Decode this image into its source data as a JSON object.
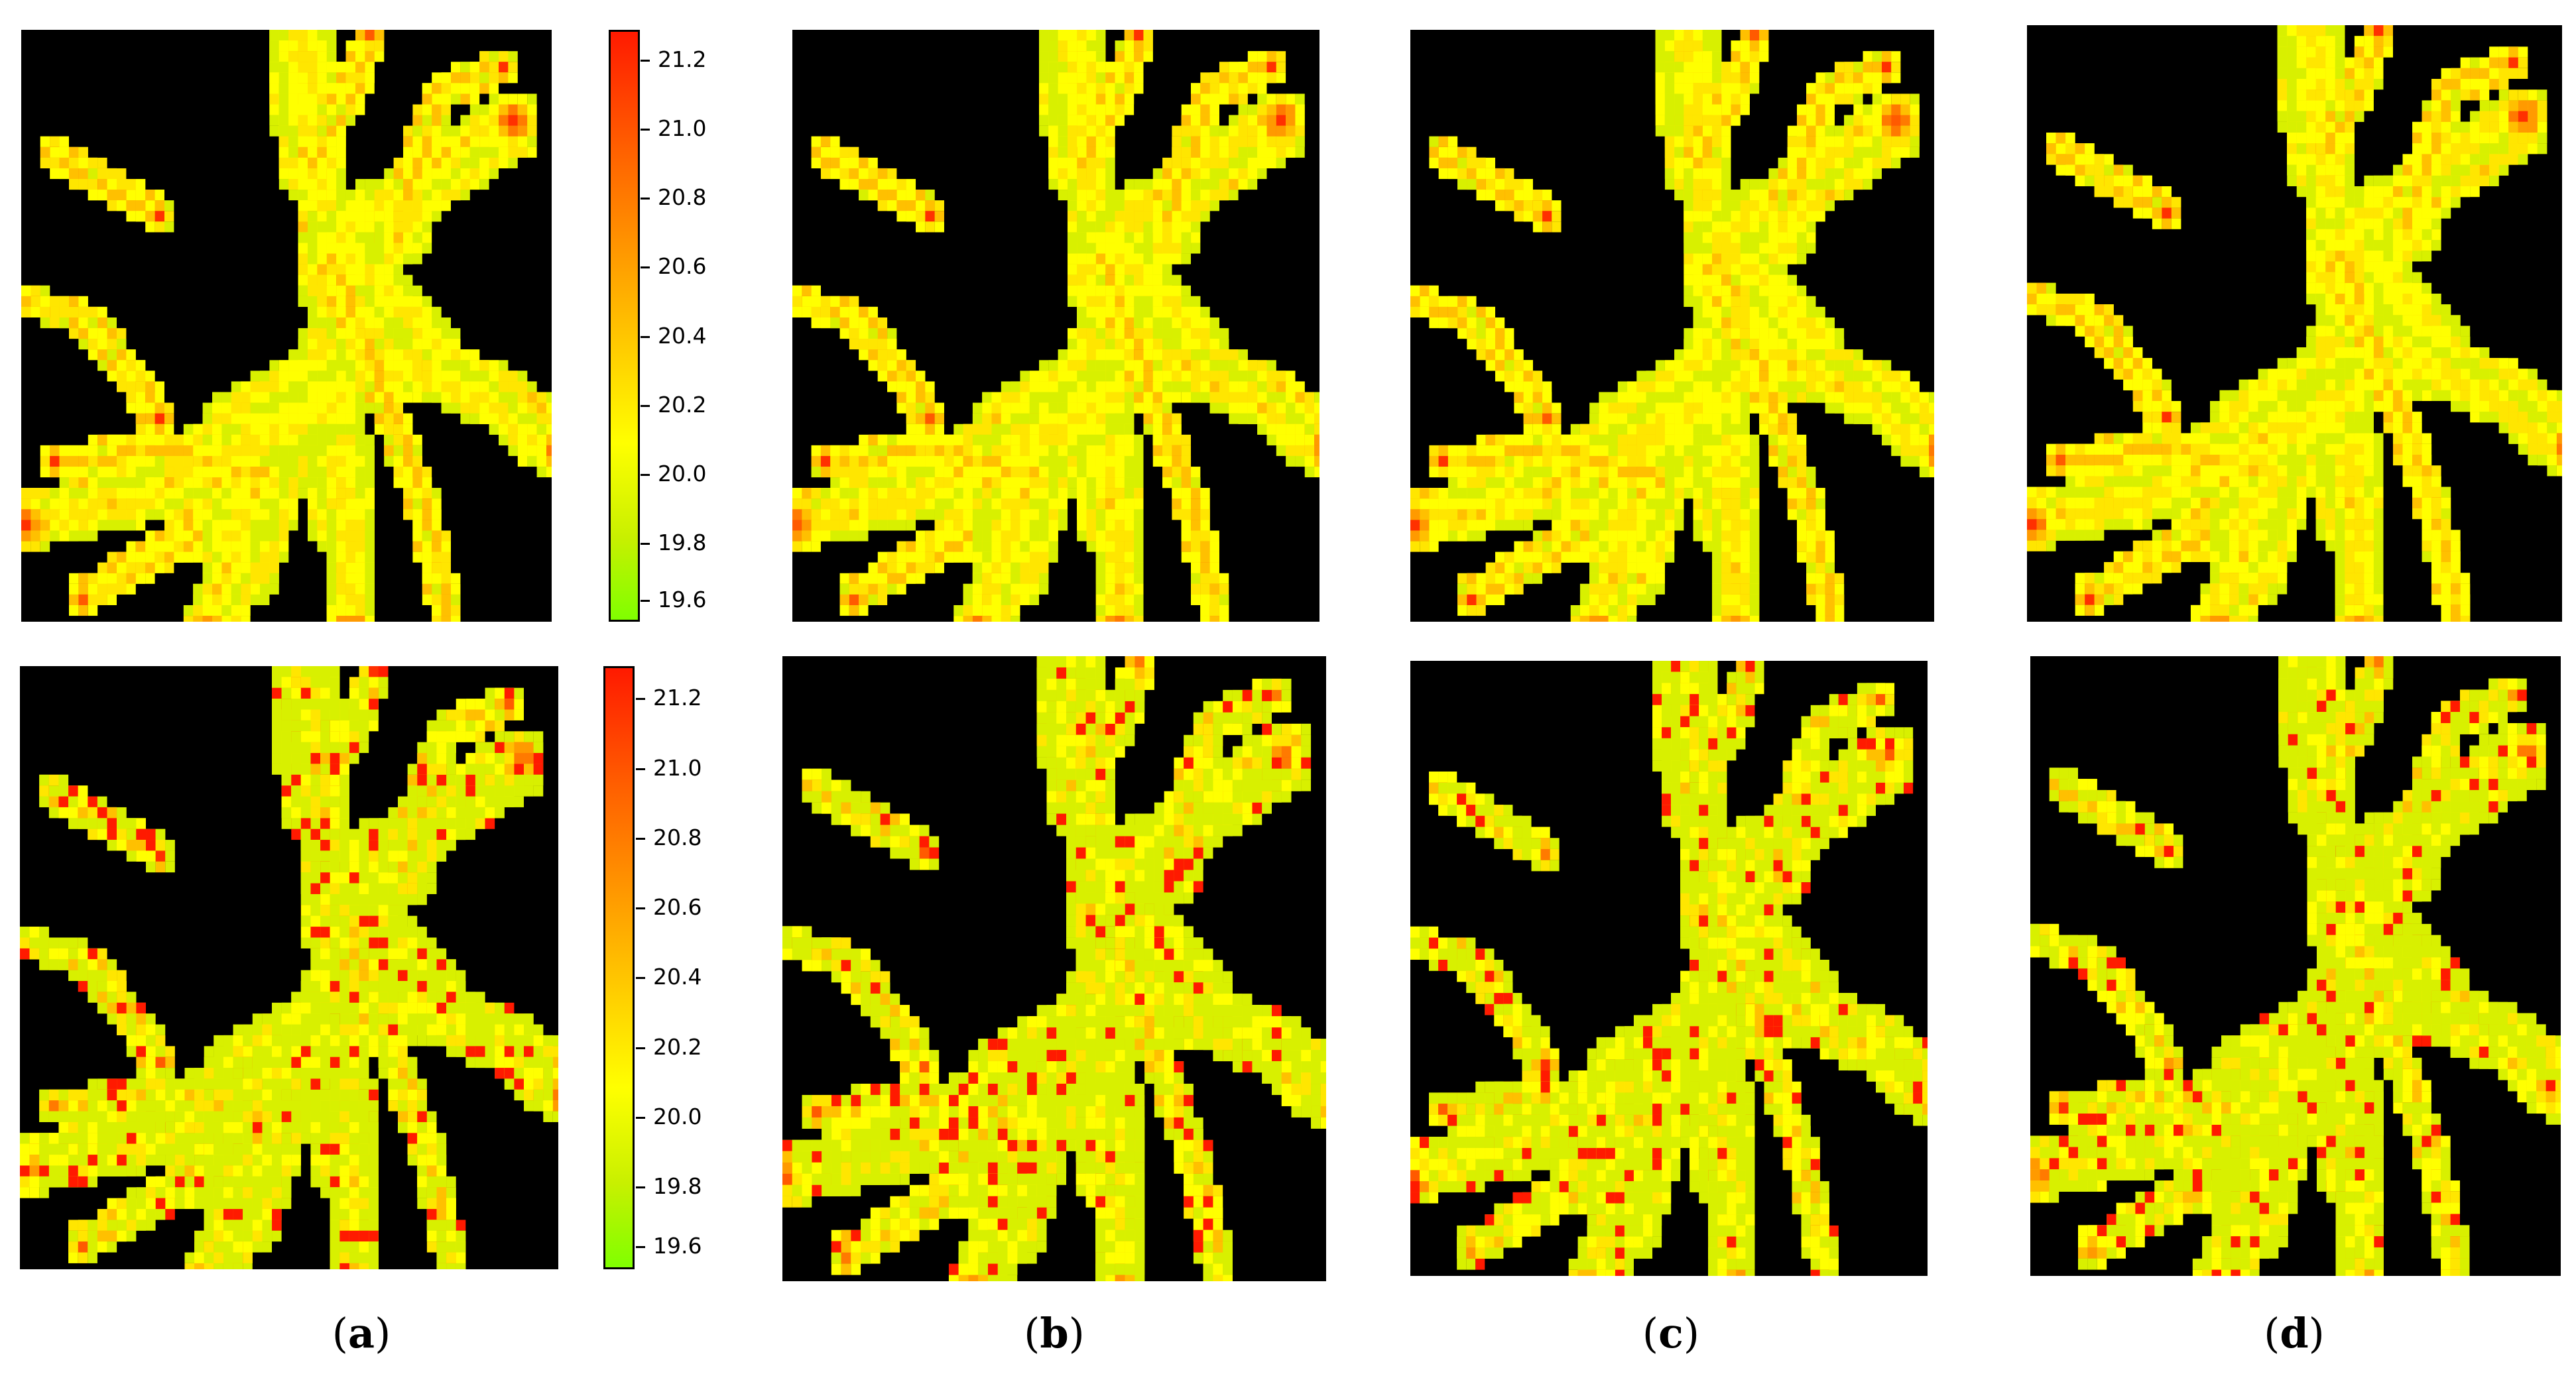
{
  "colorbar": {
    "ticks": [
      "21.2",
      "21.0",
      "20.8",
      "20.6",
      "20.4",
      "20.2",
      "20.0",
      "19.8",
      "19.6"
    ],
    "colors": {
      "low": "#80ff00",
      "mid": "#ffff00",
      "high": "#ff1a00"
    }
  },
  "captions": [
    {
      "open": "(",
      "letter": "a",
      "close": ")"
    },
    {
      "open": "(",
      "letter": "b",
      "close": ")"
    },
    {
      "open": "(",
      "letter": "c",
      "close": ")"
    },
    {
      "open": "(",
      "letter": "d",
      "close": ")"
    }
  ]
}
